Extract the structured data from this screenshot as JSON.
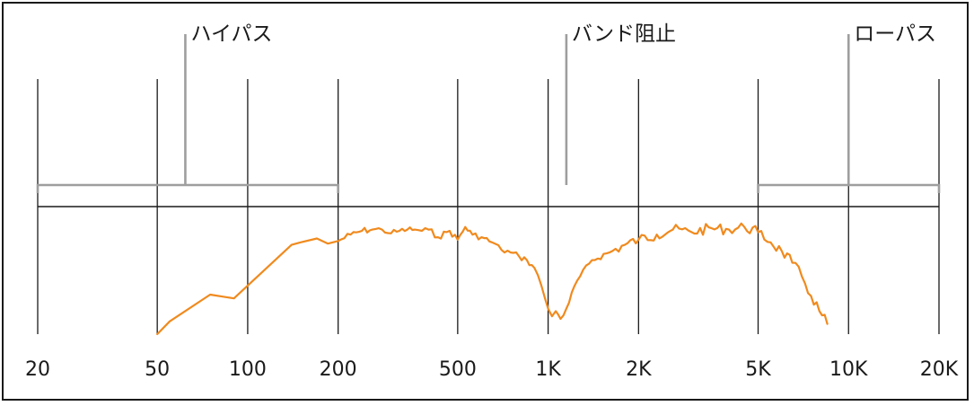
{
  "chart_data": {
    "type": "line",
    "title": "",
    "xlabel": "",
    "ylabel": "",
    "x_scale": "log",
    "xlim": [
      20,
      20000
    ],
    "x_ticks": [
      20,
      50,
      100,
      200,
      500,
      1000,
      2000,
      5000,
      10000,
      20000
    ],
    "x_tick_labels": [
      "20",
      "50",
      "100",
      "200",
      "500",
      "1K",
      "2K",
      "5K",
      "10K",
      "20K"
    ],
    "ylim": [
      0,
      100
    ],
    "reference_level": 100,
    "grid": "vertical",
    "line_color": "#f08a1e",
    "bracket_color": "#9e9e9e",
    "regions": [
      {
        "label": "ハイパス",
        "range": [
          20,
          200
        ],
        "pointer": 62
      },
      {
        "label": "バンド阻止",
        "range": [
          1150,
          1150
        ],
        "pointer": 1150
      },
      {
        "label": "ローパス",
        "range": [
          5000,
          20000
        ],
        "pointer": 10000
      }
    ],
    "series": [
      {
        "x": [
          50,
          55,
          75,
          90,
          140,
          150,
          170,
          185,
          200,
          220,
          240,
          260,
          280,
          300,
          320,
          340,
          360,
          380,
          400,
          430,
          470,
          500,
          530,
          560,
          600,
          650,
          700,
          750,
          800,
          850,
          900,
          950,
          1000,
          1030,
          1060,
          1100,
          1150,
          1250,
          1400,
          1600,
          1800,
          2000,
          2300,
          2600,
          3000,
          3500,
          4000,
          4500,
          5000,
          5500,
          6000,
          6500,
          7000,
          7500,
          8000,
          8500
        ],
        "y": [
          0,
          10,
          31,
          28,
          70,
          72,
          75,
          71,
          73,
          78,
          81,
          82,
          82,
          79,
          81,
          82,
          82,
          81,
          82,
          76,
          81,
          74,
          84,
          78,
          76,
          72,
          66,
          64,
          61,
          58,
          52,
          38,
          20,
          14,
          18,
          12,
          20,
          42,
          58,
          64,
          70,
          74,
          78,
          82,
          80,
          83,
          82,
          84,
          80,
          72,
          65,
          56,
          45,
          30,
          18,
          8
        ]
      }
    ]
  }
}
